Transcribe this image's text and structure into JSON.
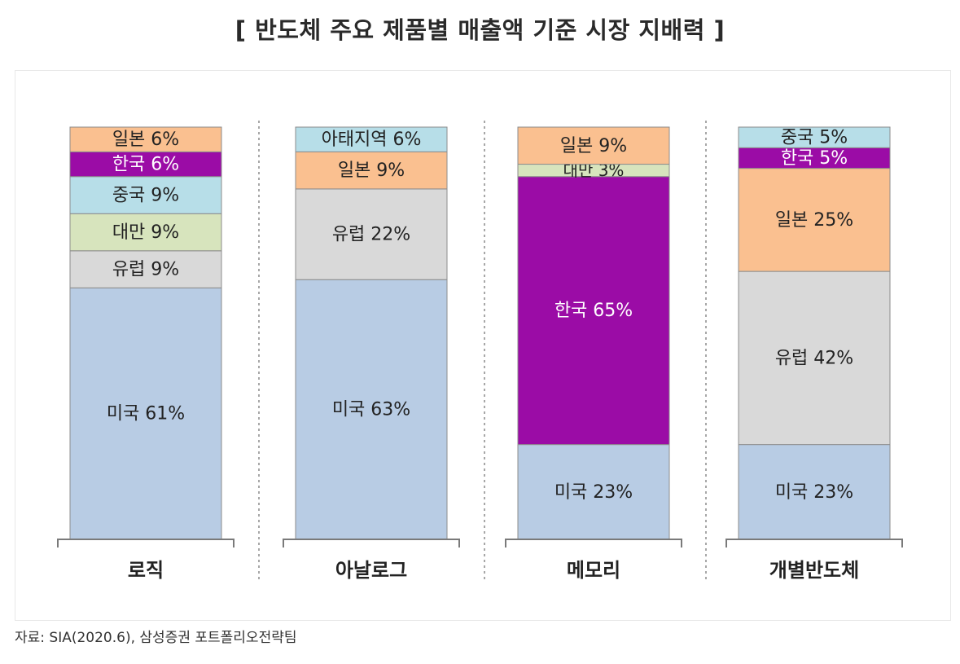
{
  "title": "[ 반도체 주요 제품별 매출액 기준 시장 지배력 ]",
  "source": "자료: SIA(2020.6), 삼성증권 포트폴리오전략팀",
  "colors": {
    "미국": "#b8cce4",
    "유럽": "#d9d9d9",
    "대만": "#d7e4bd",
    "중국": "#b7dee8",
    "한국": "#9b0ca6",
    "일본": "#fac090",
    "아태지역": "#b7dee8"
  },
  "chart_data": {
    "type": "bar",
    "stacked": true,
    "normalized": true,
    "title": "[ 반도체 주요 제품별 매출액 기준 시장 지배력 ]",
    "categories": [
      "로직",
      "아날로그",
      "메모리",
      "개별반도체"
    ],
    "stacks": [
      {
        "category": "로직",
        "segments": [
          {
            "region": "미국",
            "value": 61,
            "label": "미국 61%"
          },
          {
            "region": "유럽",
            "value": 9,
            "label": "유럽 9%"
          },
          {
            "region": "대만",
            "value": 9,
            "label": "대만 9%"
          },
          {
            "region": "중국",
            "value": 9,
            "label": "중국 9%"
          },
          {
            "region": "한국",
            "value": 6,
            "label": "한국 6%"
          },
          {
            "region": "일본",
            "value": 6,
            "label": "일본 6%"
          }
        ]
      },
      {
        "category": "아날로그",
        "segments": [
          {
            "region": "미국",
            "value": 63,
            "label": "미국 63%"
          },
          {
            "region": "유럽",
            "value": 22,
            "label": "유럽 22%"
          },
          {
            "region": "일본",
            "value": 9,
            "label": "일본 9%"
          },
          {
            "region": "아태지역",
            "value": 6,
            "label": "아태지역 6%"
          }
        ]
      },
      {
        "category": "메모리",
        "segments": [
          {
            "region": "미국",
            "value": 23,
            "label": "미국 23%"
          },
          {
            "region": "한국",
            "value": 65,
            "label": "한국 65%"
          },
          {
            "region": "대만",
            "value": 3,
            "label": "대만 3%"
          },
          {
            "region": "일본",
            "value": 9,
            "label": "일본 9%"
          }
        ]
      },
      {
        "category": "개별반도체",
        "segments": [
          {
            "region": "미국",
            "value": 23,
            "label": "미국 23%"
          },
          {
            "region": "유럽",
            "value": 42,
            "label": "유럽 42%"
          },
          {
            "region": "일본",
            "value": 25,
            "label": "일본 25%"
          },
          {
            "region": "한국",
            "value": 5,
            "label": "한국 5%"
          },
          {
            "region": "중국",
            "value": 5,
            "label": "중국 5%"
          }
        ]
      }
    ]
  }
}
